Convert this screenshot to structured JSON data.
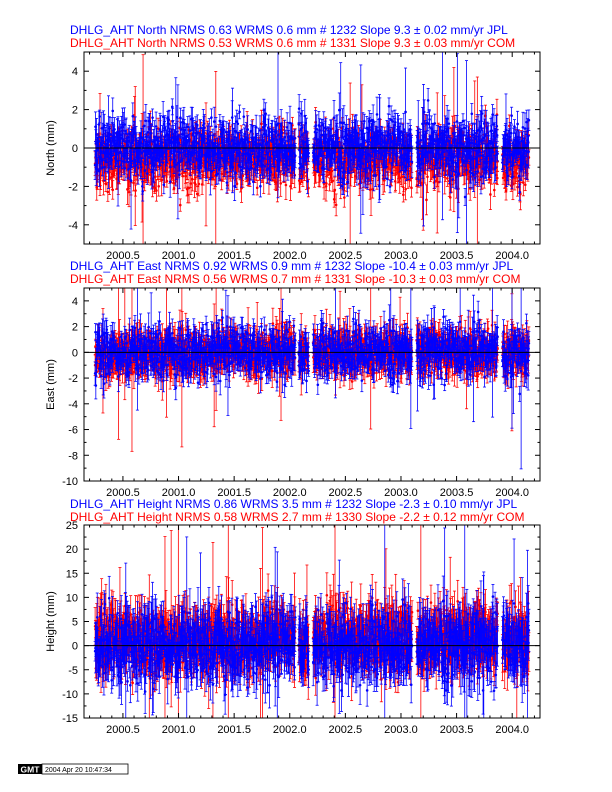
{
  "chart_data": [
    {
      "type": "scatter",
      "component": "North",
      "header_lines": [
        {
          "text": "DHLG_AHT North NRMS 0.63 WRMS  0.6 mm # 1232 Slope    9.3 ±  0.02 mm/yr JPL",
          "color": "#0000ff"
        },
        {
          "text": "DHLG_AHT North NRMS 0.53 WRMS  0.6 mm # 1331 Slope    9.3 ±  0.03 mm/yr COM",
          "color": "#ff0000"
        }
      ],
      "ylabel": "North (mm)",
      "xlim": [
        2000.15,
        2004.25
      ],
      "ylim": [
        -5,
        5
      ],
      "xticks": [
        "2000.5",
        "2001.0",
        "2001.5",
        "2002.0",
        "2002.5",
        "2003.0",
        "2003.5",
        "2004.0"
      ],
      "yticks": [
        "-4",
        "-2",
        "0",
        "2",
        "4"
      ],
      "series": [
        {
          "color": "#ff0000",
          "offset": -0.6,
          "sigma": 0.7,
          "error": 0.55,
          "count": 1331
        },
        {
          "color": "#0000ff",
          "offset": 0.0,
          "sigma": 0.75,
          "error": 0.6,
          "count": 1232
        }
      ]
    },
    {
      "type": "scatter",
      "component": "East",
      "header_lines": [
        {
          "text": "DHLG_AHT East NRMS 0.92 WRMS  0.9 mm # 1232 Slope  -10.4 ±  0.03 mm/yr JPL",
          "color": "#0000ff"
        },
        {
          "text": "DHLG_AHT East NRMS 0.56 WRMS  0.7 mm # 1331 Slope  -10.3 ±  0.03 mm/yr COM",
          "color": "#ff0000"
        }
      ],
      "ylabel": "East (mm)",
      "xlim": [
        2000.15,
        2004.25
      ],
      "ylim": [
        -10,
        5
      ],
      "xticks": [
        "2000.5",
        "2001.0",
        "2001.5",
        "2002.0",
        "2002.5",
        "2003.0",
        "2003.5",
        "2004.0"
      ],
      "yticks": [
        "-10",
        "-8",
        "-6",
        "-4",
        "-2",
        "0",
        "2",
        "4"
      ],
      "series": [
        {
          "color": "#ff0000",
          "offset": 0.0,
          "sigma": 0.75,
          "error": 0.9,
          "count": 1331
        },
        {
          "color": "#0000ff",
          "offset": 0.0,
          "sigma": 0.95,
          "error": 0.8,
          "count": 1232
        }
      ]
    },
    {
      "type": "scatter",
      "component": "Height",
      "header_lines": [
        {
          "text": "DHLG_AHT Height NRMS 0.86 WRMS  3.5 mm # 1232 Slope   -2.3 ±  0.10 mm/yr JPL",
          "color": "#0000ff"
        },
        {
          "text": "DHLG_AHT Height NRMS 0.58 WRMS  2.7 mm # 1330 Slope   -2.2 ±  0.12 mm/yr COM",
          "color": "#ff0000"
        }
      ],
      "ylabel": "Height (mm)",
      "xlim": [
        2000.15,
        2004.25
      ],
      "ylim": [
        -15,
        25
      ],
      "xticks": [
        "2000.5",
        "2001.0",
        "2001.5",
        "2002.0",
        "2002.5",
        "2003.0",
        "2003.5",
        "2004.0"
      ],
      "yticks": [
        "-15",
        "-10",
        "-5",
        "0",
        "5",
        "10",
        "15",
        "20",
        "25"
      ],
      "series": [
        {
          "color": "#ff0000",
          "offset": 1.5,
          "sigma": 3.0,
          "error": 3.5,
          "count": 1330
        },
        {
          "color": "#0000ff",
          "offset": 0.0,
          "sigma": 3.5,
          "error": 3.5,
          "count": 1232
        }
      ]
    }
  ],
  "data_span": [
    2000.25,
    2004.15
  ],
  "data_gaps": [
    [
      2002.05,
      2002.08
    ],
    [
      2002.17,
      2002.21
    ],
    [
      2003.1,
      2003.14
    ],
    [
      2003.87,
      2003.91
    ]
  ],
  "footer": {
    "logo": "GMT",
    "timestamp": "2004 Apr 20 10:47:34"
  }
}
